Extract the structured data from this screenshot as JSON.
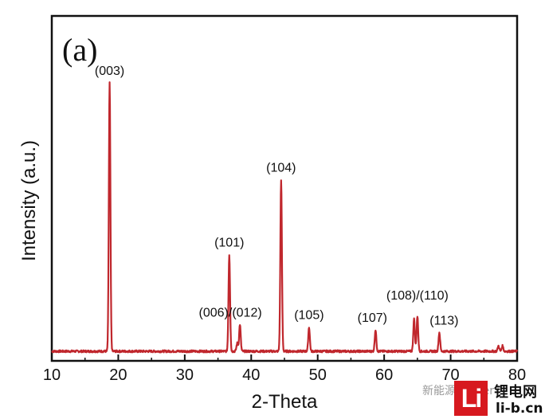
{
  "panel_label": "(a)",
  "chart_data": {
    "type": "line",
    "xlabel": "2-Theta",
    "ylabel": "Intensity (a.u.)",
    "xlim": [
      10,
      80
    ],
    "ylim": [
      0,
      1.02
    ],
    "xticks": [
      "10",
      "20",
      "30",
      "40",
      "50",
      "60",
      "70",
      "80"
    ],
    "grid": false,
    "line_color": "#c0272d",
    "baseline": 0.0,
    "peaks": [
      {
        "x": 18.7,
        "y": 1.0,
        "label": "(003)"
      },
      {
        "x": 36.7,
        "y": 0.36,
        "label": "(101)"
      },
      {
        "x": 37.9,
        "y": 0.03,
        "label": ""
      },
      {
        "x": 38.3,
        "y": 0.1,
        "label": "(006)/(012)"
      },
      {
        "x": 44.5,
        "y": 0.64,
        "label": "(104)"
      },
      {
        "x": 48.7,
        "y": 0.09,
        "label": "(105)"
      },
      {
        "x": 58.7,
        "y": 0.08,
        "label": "(107)"
      },
      {
        "x": 64.5,
        "y": 0.12,
        "label": ""
      },
      {
        "x": 65.0,
        "y": 0.13,
        "label": "(108)/(110)"
      },
      {
        "x": 68.3,
        "y": 0.07,
        "label": "(113)"
      },
      {
        "x": 77.2,
        "y": 0.02,
        "label": ""
      },
      {
        "x": 77.8,
        "y": 0.02,
        "label": ""
      }
    ]
  },
  "watermark": {
    "faint_text": "新能源Leader",
    "logo_text": "Li",
    "cn_text": "锂电网",
    "url_text": "li-b.cn"
  }
}
